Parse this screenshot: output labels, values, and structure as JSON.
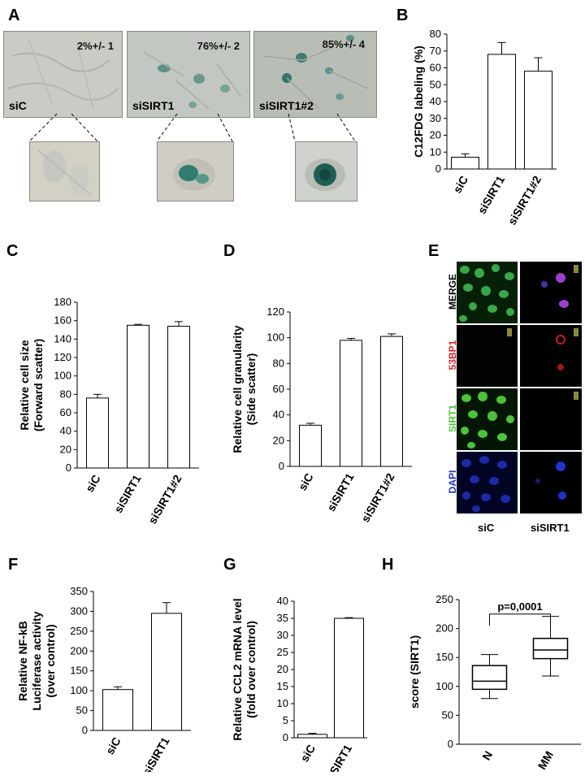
{
  "panels": {
    "A": "A",
    "B": "B",
    "C": "C",
    "D": "D",
    "E": "E",
    "F": "F",
    "G": "G",
    "H": "H"
  },
  "panel_a": {
    "images": [
      {
        "label": "siC",
        "stat": "2%+/- 1",
        "bg": "#c9cbc4"
      },
      {
        "label": "siSIRT1",
        "stat": "76%+/- 2",
        "bg": "#c2c7c1"
      },
      {
        "label": "siSIRT1#2",
        "stat": "85%+/- 4",
        "bg": "#b8bdb6"
      }
    ]
  },
  "panel_e": {
    "rows": [
      "MERGE",
      "53BP1",
      "SIRT1",
      "DAPI"
    ],
    "row_colors": [
      "#000000",
      "#d8262c",
      "#4cc23a",
      "#2130c8"
    ],
    "cols": [
      "siC",
      "siSIRT1"
    ]
  },
  "chart_data": [
    {
      "id": "B",
      "type": "bar",
      "categories": [
        "siC",
        "siSIRT1",
        "siSIRT1#2"
      ],
      "values": [
        7,
        68,
        58
      ],
      "errors": [
        2,
        7,
        8
      ],
      "ylabel": "C12FDG labeling (%)",
      "ylim": [
        0,
        80
      ],
      "yticks": [
        0,
        10,
        20,
        30,
        40,
        50,
        60,
        70,
        80
      ]
    },
    {
      "id": "C",
      "type": "bar",
      "categories": [
        "siC",
        "siSIRT1",
        "siSIRT1#2"
      ],
      "values": [
        76,
        155,
        154
      ],
      "errors": [
        4,
        1,
        5
      ],
      "ylabel": "Relative cell size",
      "ylabel2": "(Forward scatter)",
      "ylim": [
        0,
        180
      ],
      "yticks": [
        0,
        20,
        40,
        60,
        80,
        100,
        120,
        140,
        160,
        180
      ]
    },
    {
      "id": "D",
      "type": "bar",
      "categories": [
        "siC",
        "siSIRT1",
        "siSIRT1#2"
      ],
      "values": [
        32,
        98,
        101
      ],
      "errors": [
        1.5,
        1.5,
        2
      ],
      "ylabel": "Relative cell granularity",
      "ylabel2": "(Side scatter)",
      "ylim": [
        0,
        120
      ],
      "yticks": [
        0,
        20,
        40,
        60,
        80,
        100,
        120
      ]
    },
    {
      "id": "F",
      "type": "bar",
      "categories": [
        "siC",
        "siSIRT1"
      ],
      "values": [
        103,
        295
      ],
      "errors": [
        7,
        27
      ],
      "ylabel": "Relative NF-kB",
      "ylabel2": "Luciferase activity",
      "ylabel3": "(over control)",
      "ylim": [
        0,
        350
      ],
      "yticks": [
        0,
        50,
        100,
        150,
        200,
        250,
        300,
        350
      ]
    },
    {
      "id": "G",
      "type": "bar",
      "categories": [
        "siC",
        "siSIRT1"
      ],
      "values": [
        1,
        35
      ],
      "errors": [
        0.3,
        0.2
      ],
      "ylabel": "Relative CCL2 mRNA level",
      "ylabel2": "(fold over control)",
      "ylim": [
        0,
        40
      ],
      "yticks": [
        0,
        5,
        10,
        15,
        20,
        25,
        30,
        35,
        40
      ]
    },
    {
      "id": "H",
      "type": "box",
      "categories": [
        "N",
        "MM"
      ],
      "boxes": [
        {
          "min": 79,
          "q1": 95,
          "median": 109,
          "q3": 136,
          "max": 155
        },
        {
          "min": 118,
          "q1": 148,
          "median": 163,
          "q3": 183,
          "max": 221
        }
      ],
      "ylabel": "score (SIRT1)",
      "ylim": [
        0,
        250
      ],
      "yticks": [
        0,
        50,
        100,
        150,
        200,
        250
      ],
      "annotation": "p=0,0001"
    }
  ]
}
